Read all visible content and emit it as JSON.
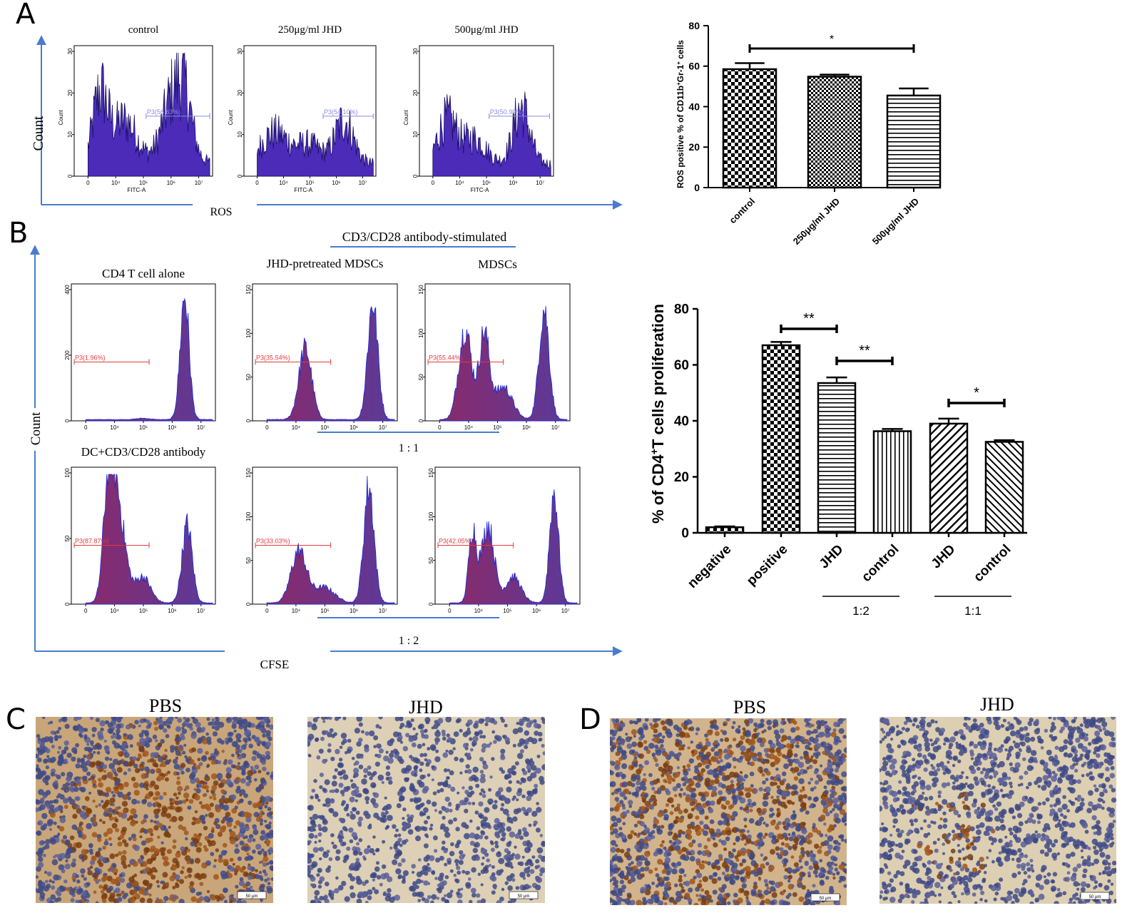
{
  "colors": {
    "axis_blue": "#4a7bd0",
    "hist_purple": "#4b2bb8",
    "hist_mix": "#6a3a8e",
    "gate_red": "#e23b3b",
    "gate_lilac": "#8a8ae0"
  },
  "panels": {
    "a": "A",
    "b": "B",
    "c": "C",
    "d": "D"
  },
  "panel_a": {
    "y_arrow_label": "Count",
    "x_arrow_label": "ROS",
    "histograms": [
      {
        "title": "control",
        "gate": "P3(56.63%)",
        "ylabel": "Count",
        "xlabel": "FITC-A",
        "yticks": [
          "0",
          "10",
          "20",
          "30"
        ],
        "xticks": [
          "0",
          "10⁴",
          "10⁵",
          "10⁶",
          "10⁷"
        ]
      },
      {
        "title": "250μg/ml JHD",
        "gate": "P3(54.10%)",
        "ylabel": "Count",
        "xlabel": "FITC-A",
        "yticks": [
          "0",
          "10",
          "20",
          "30"
        ],
        "xticks": [
          "0",
          "10⁴",
          "10⁵",
          "10⁶",
          "10⁷"
        ]
      },
      {
        "title": "500μg/ml JHD",
        "gate": "P3(50.99%)",
        "ylabel": "Count",
        "xlabel": "FITC-A",
        "yticks": [
          "0",
          "10",
          "20",
          "30"
        ],
        "xticks": [
          "0",
          "10⁴",
          "10⁵",
          "10⁶",
          "10⁷"
        ]
      }
    ]
  },
  "panel_b": {
    "header": "CD3/CD28 antibody-stimulated",
    "y_arrow_label": "Count",
    "x_arrow_label": "CFSE",
    "ratio_top": "1 : 1",
    "ratio_bottom": "1 : 2",
    "histograms": [
      {
        "title": "CD4 T cell alone",
        "gate": "P3(1.96%)",
        "yticks": [
          "0",
          "200",
          "400"
        ],
        "xticks": [
          "0",
          "10⁴",
          "10⁵",
          "10⁶",
          "10⁷"
        ]
      },
      {
        "title": "JHD-pretreated MDSCs",
        "gate": "P3(35.54%)",
        "yticks": [
          "0",
          "50",
          "100",
          "150"
        ],
        "xticks": [
          "0",
          "10⁴",
          "10⁵",
          "10⁶",
          "10⁷"
        ]
      },
      {
        "title": "MDSCs",
        "gate": "P3(55.44%)",
        "yticks": [
          "0",
          "50",
          "100",
          "150"
        ],
        "xticks": [
          "0",
          "10⁴",
          "10⁵",
          "10⁶",
          "10⁷"
        ]
      },
      {
        "title": "DC+CD3/CD28 antibody",
        "gate": "P3(87.87%)",
        "yticks": [
          "0",
          "50",
          "100"
        ],
        "xticks": [
          "0",
          "10⁴",
          "10⁵",
          "10⁶",
          "10⁷"
        ]
      },
      {
        "title": "",
        "gate": "P3(33.03%)",
        "yticks": [
          "0",
          "50",
          "100",
          "150"
        ],
        "xticks": [
          "0",
          "10⁴",
          "10⁵",
          "10⁶",
          "10⁷"
        ]
      },
      {
        "title": "",
        "gate": "P3(42.05%)",
        "yticks": [
          "0",
          "50",
          "100",
          "150"
        ],
        "xticks": [
          "0",
          "10⁴",
          "10⁵",
          "10⁶",
          "10⁷"
        ]
      }
    ]
  },
  "panel_c": {
    "left_label": "PBS",
    "right_label": "JHD",
    "scale": "50 μm"
  },
  "panel_d": {
    "left_label": "PBS",
    "right_label": "JHD",
    "scale": "50 μm"
  },
  "chart_data": [
    {
      "type": "bar",
      "title": "",
      "ylabel": "ROS positive % of CD11b⁺Gr-1⁺ cells",
      "ylabel_parts": [
        "ROS positive % of CD11b",
        "+",
        "Gr-1",
        "+",
        " cells"
      ],
      "xlabel": "",
      "categories": [
        "control",
        "250μg/ml JHD",
        "500μg/ml JHD"
      ],
      "values": [
        58.5,
        54.8,
        45.5
      ],
      "errors": [
        3,
        1,
        3.5
      ],
      "ylim": [
        0,
        80
      ],
      "yticks": [
        0,
        20,
        40,
        60,
        80
      ],
      "ytick_labels": [
        "0",
        "20",
        "40",
        "60",
        "80"
      ],
      "patterns": [
        "checker",
        "checker-small",
        "hlines"
      ],
      "significance": [
        {
          "from": 0,
          "to": 2,
          "label": "*"
        }
      ]
    },
    {
      "type": "bar",
      "title": "",
      "ylabel": "% of CD4⁺T cells proliferation",
      "ylabel_parts": [
        "% of CD4",
        "+",
        "T cells proliferation"
      ],
      "xlabel": "",
      "categories": [
        "negative",
        "positive",
        "JHD",
        "control",
        "JHD",
        "control"
      ],
      "values": [
        2,
        67,
        53.5,
        36.3,
        39,
        32.5
      ],
      "errors": [
        0.3,
        1.2,
        2,
        0.8,
        1.8,
        0.6
      ],
      "ylim": [
        0,
        80
      ],
      "yticks": [
        0,
        20,
        40,
        60,
        80
      ],
      "ytick_labels": [
        "0",
        "20",
        "40",
        "60",
        "80"
      ],
      "patterns": [
        "checker",
        "checker",
        "hlines",
        "vlines",
        "diag",
        "diag-rev"
      ],
      "groups": [
        {
          "label": "1:2",
          "from": 2,
          "to": 3
        },
        {
          "label": "1:1",
          "from": 4,
          "to": 5
        }
      ],
      "significance": [
        {
          "from": 1,
          "to": 2,
          "label": "**"
        },
        {
          "from": 2,
          "to": 3,
          "label": "**"
        },
        {
          "from": 4,
          "to": 5,
          "label": "*"
        }
      ]
    }
  ]
}
